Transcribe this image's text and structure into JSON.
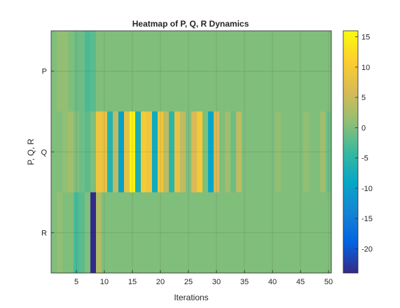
{
  "chart_data": {
    "type": "heatmap",
    "title": "Heatmap of P, Q, R Dynamics",
    "xlabel": "Iterations",
    "ylabel": "P, Q, R",
    "rows": [
      "P",
      "Q",
      "R"
    ],
    "x": [
      1,
      2,
      3,
      4,
      5,
      6,
      7,
      8,
      9,
      10,
      11,
      12,
      13,
      14,
      15,
      16,
      17,
      18,
      19,
      20,
      21,
      22,
      23,
      24,
      25,
      26,
      27,
      28,
      29,
      30,
      31,
      32,
      33,
      34,
      35,
      36,
      37,
      38,
      39,
      40,
      41,
      42,
      43,
      44,
      45,
      46,
      47,
      48,
      49,
      50
    ],
    "xticks": [
      5,
      10,
      15,
      20,
      25,
      30,
      35,
      40,
      45,
      50
    ],
    "xlim": [
      0.5,
      50.5
    ],
    "values": [
      [
        0,
        1,
        1,
        0,
        -1,
        -1,
        -3,
        -2,
        0,
        0,
        0,
        0,
        0,
        0,
        0,
        0,
        0,
        0,
        0,
        0,
        0,
        0,
        0,
        0,
        0,
        0,
        0,
        0,
        0,
        0,
        0,
        0,
        0,
        0,
        0,
        0,
        0,
        0,
        0,
        0,
        0,
        0,
        0,
        0,
        0,
        0,
        0,
        0,
        0,
        0
      ],
      [
        0,
        0,
        1,
        2,
        0,
        -1,
        -2,
        0,
        9,
        8,
        -6,
        4,
        -10,
        8,
        15,
        -7,
        10,
        9,
        -8,
        9,
        4,
        -5,
        8,
        4,
        0,
        6,
        10,
        0,
        -9,
        6,
        0,
        2,
        -1,
        4,
        0,
        0,
        0,
        0,
        0,
        0,
        1,
        0,
        0,
        0,
        0,
        1,
        0,
        0,
        2,
        -1
      ],
      [
        0,
        1,
        0,
        0,
        -3,
        -2,
        0,
        -24,
        3,
        0,
        0,
        0,
        0,
        0,
        0,
        0,
        0,
        0,
        0,
        0,
        0,
        0,
        0,
        0,
        0,
        0,
        0,
        0,
        0,
        0,
        0,
        0,
        0,
        0,
        0,
        0,
        0,
        0,
        0,
        0,
        0,
        0,
        0,
        0,
        0,
        0,
        0,
        0,
        0,
        0
      ]
    ],
    "colorbar": {
      "colormap": "parula",
      "range": [
        -24,
        16
      ],
      "ticks": [
        -20,
        -15,
        -10,
        -5,
        0,
        5,
        10,
        15
      ]
    },
    "grid": true
  }
}
